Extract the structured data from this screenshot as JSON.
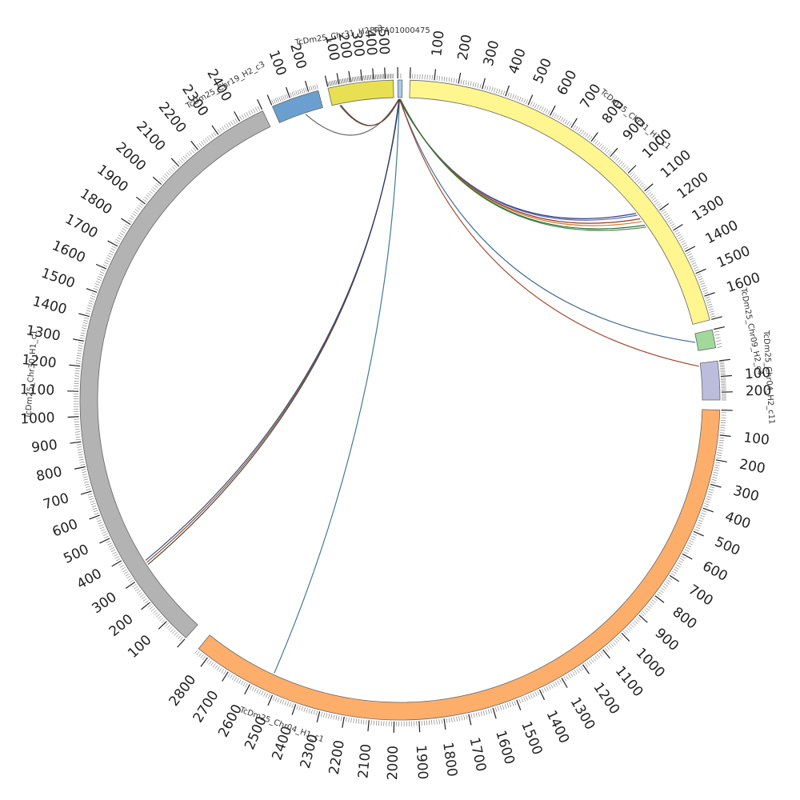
{
  "chart_data": {
    "type": "chord",
    "segments": [
      {
        "id": "prfa",
        "name": "PRFA01000475",
        "length": 15,
        "color": "#a6cee3",
        "tick_start": null,
        "tick_step": null,
        "tick_end": null
      },
      {
        "id": "chr31h1",
        "name": "TcDm25_Chr31_H1_c1",
        "length": 1700,
        "color": "#fff68f",
        "tick_start": 100,
        "tick_step": 100,
        "tick_end": 1600
      },
      {
        "id": "chr09",
        "name": "TcDm25_Chr09_H2_c4",
        "length": 60,
        "color": "#a1d99b",
        "tick_start": null,
        "tick_step": null,
        "tick_end": null
      },
      {
        "id": "chr04h2",
        "name": "TcDm25_Chr04_H2_c11",
        "length": 250,
        "color": "#bcbddc",
        "tick_start": 100,
        "tick_step": 100,
        "tick_end": 200
      },
      {
        "id": "chr04h1",
        "name": "TcDm25_Chr04_H1_c1",
        "length": 2850,
        "color": "#fdae6b",
        "tick_start": 100,
        "tick_step": 100,
        "tick_end": 2800
      },
      {
        "id": "chr30h1",
        "name": "TcDm25_Chr30_H1_c1",
        "length": 2500,
        "color": "#b3b3b3",
        "tick_start": 100,
        "tick_step": 100,
        "tick_end": 2400
      },
      {
        "id": "chr19h2",
        "name": "TcDm25_Chr19_H2_c3",
        "length": 250,
        "color": "#6a9fcf",
        "tick_start": 100,
        "tick_step": 100,
        "tick_end": 200
      },
      {
        "id": "chr31h2",
        "name": "TcDm25_Chr31_H2_c3",
        "length": 570,
        "color": "#e8e052",
        "tick_start": 100,
        "tick_step": 100,
        "tick_end": 500
      }
    ],
    "links": [
      {
        "from": "prfa",
        "from_pos": 4,
        "to": "chr31h1",
        "to_pos": 1150,
        "color": "#1f2c7a"
      },
      {
        "from": "prfa",
        "from_pos": 5,
        "to": "chr31h1",
        "to_pos": 1160,
        "color": "#4a5ab0"
      },
      {
        "from": "prfa",
        "from_pos": 6,
        "to": "chr31h1",
        "to_pos": 1180,
        "color": "#8b2500"
      },
      {
        "from": "prfa",
        "from_pos": 7,
        "to": "chr31h1",
        "to_pos": 1195,
        "color": "#d2691e"
      },
      {
        "from": "prfa",
        "from_pos": 8,
        "to": "chr31h1",
        "to_pos": 1215,
        "color": "#1b5e20"
      },
      {
        "from": "prfa",
        "from_pos": 9,
        "to": "chr31h1",
        "to_pos": 1225,
        "color": "#2e7d32"
      },
      {
        "from": "prfa",
        "from_pos": 6,
        "to": "chr09",
        "to_pos": 30,
        "color": "#2c5b8a"
      },
      {
        "from": "prfa",
        "from_pos": 7,
        "to": "chr04h2",
        "to_pos": 20,
        "color": "#9c3a1a"
      },
      {
        "from": "prfa",
        "from_pos": 5,
        "to": "chr04h1",
        "to_pos": 2530,
        "color": "#2a6f8a"
      },
      {
        "from": "prfa",
        "from_pos": 4,
        "to": "chr30h1",
        "to_pos": 330,
        "color": "#333333"
      },
      {
        "from": "prfa",
        "from_pos": 5,
        "to": "chr30h1",
        "to_pos": 340,
        "color": "#8b4513"
      },
      {
        "from": "prfa",
        "from_pos": 6,
        "to": "chr30h1",
        "to_pos": 350,
        "color": "#1f3d7a"
      },
      {
        "from": "prfa",
        "from_pos": 3,
        "to": "chr19h2",
        "to_pos": 150,
        "color": "#555555"
      },
      {
        "from": "prfa",
        "from_pos": 4,
        "to": "chr31h2",
        "to_pos": 80,
        "color": "#3d3d3d"
      },
      {
        "from": "prfa",
        "from_pos": 3,
        "to": "chr31h2",
        "to_pos": 70,
        "color": "#7a3b1f"
      }
    ]
  }
}
